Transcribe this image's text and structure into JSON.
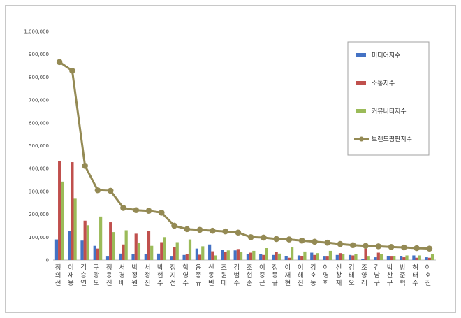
{
  "chart_data": {
    "type": "bar",
    "ylim": [
      0,
      1000000
    ],
    "yticks": [
      "0",
      "100,000",
      "200,000",
      "300,000",
      "400,000",
      "500,000",
      "600,000",
      "700,000",
      "800,000",
      "900,000",
      "1,000,000"
    ],
    "grid": false,
    "legend_position": "right",
    "categories": [
      "정의선",
      "이재용",
      "김승연",
      "구광모",
      "정용진",
      "서경배",
      "박정원",
      "서정진",
      "박현주",
      "정지선",
      "함영주",
      "윤종규",
      "신동빈",
      "조원태",
      "김범수",
      "조현준",
      "이중근",
      "정몽규",
      "이재현",
      "이해진",
      "강호동",
      "이명희",
      "신창재",
      "김태오",
      "조양래",
      "김남구",
      "박찬구",
      "방준혁",
      "허태수",
      "이호진"
    ],
    "series": [
      {
        "name": "미디어지수",
        "kind": "bar",
        "color": "#4472c4",
        "values": [
          90000,
          128000,
          85000,
          62000,
          15000,
          28000,
          25000,
          27000,
          28000,
          15000,
          22000,
          50000,
          68000,
          45000,
          42000,
          25000,
          25000,
          22000,
          18000,
          20000,
          32000,
          15000,
          22000,
          22000,
          5000,
          12000,
          18000,
          18000,
          20000,
          12000
        ]
      },
      {
        "name": "소통지수",
        "kind": "bar",
        "color": "#c0504d",
        "values": [
          432000,
          428000,
          172000,
          50000,
          165000,
          68000,
          115000,
          128000,
          78000,
          55000,
          25000,
          23000,
          38000,
          36000,
          48000,
          32000,
          22000,
          35000,
          10000,
          18000,
          22000,
          15000,
          30000,
          20000,
          50000,
          32000,
          15000,
          12000,
          10000,
          10000
        ]
      },
      {
        "name": "커뮤니티지수",
        "kind": "bar",
        "color": "#9bbb59",
        "values": [
          343000,
          268000,
          152000,
          190000,
          122000,
          130000,
          75000,
          62000,
          100000,
          78000,
          90000,
          60000,
          20000,
          42000,
          35000,
          40000,
          52000,
          28000,
          55000,
          37000,
          30000,
          40000,
          25000,
          25000,
          15000,
          25000,
          18000,
          20000,
          20000,
          25000
        ]
      },
      {
        "name": "브랜드평판지수",
        "kind": "line",
        "color": "#948a54",
        "values": [
          866000,
          828000,
          412000,
          305000,
          303000,
          228000,
          218000,
          215000,
          207000,
          150000,
          135000,
          132000,
          128000,
          125000,
          120000,
          100000,
          98000,
          92000,
          90000,
          85000,
          80000,
          76000,
          70000,
          65000,
          62000,
          60000,
          57000,
          55000,
          52000,
          50000
        ]
      }
    ]
  }
}
